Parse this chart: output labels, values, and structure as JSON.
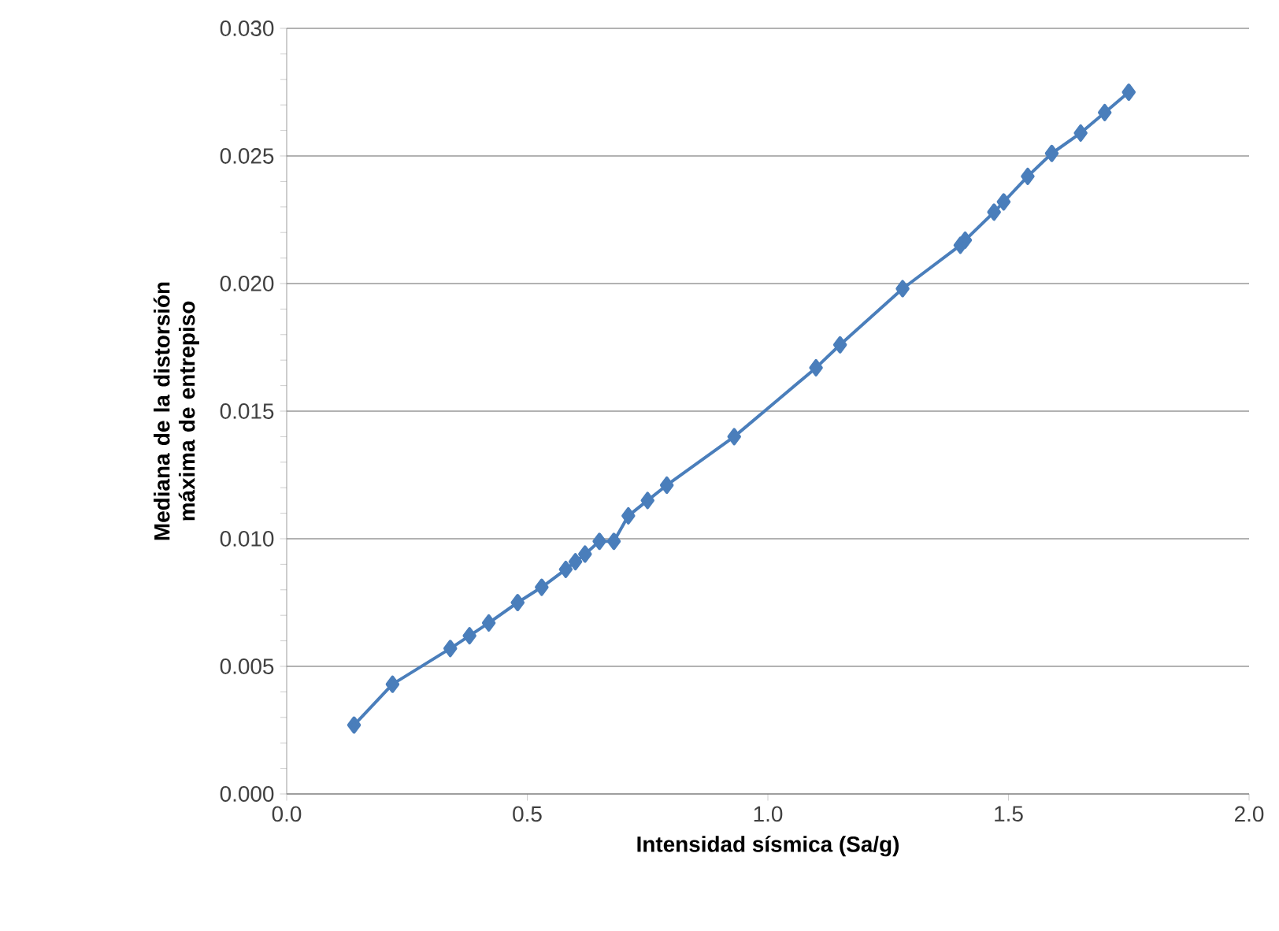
{
  "chart_data": {
    "type": "line",
    "xlabel": "Intensidad sísmica (Sa/g)",
    "ylabel": "Mediana de la distorsión máxima de entrepiso",
    "x": [
      0.14,
      0.22,
      0.34,
      0.38,
      0.42,
      0.48,
      0.53,
      0.58,
      0.6,
      0.62,
      0.65,
      0.68,
      0.71,
      0.75,
      0.79,
      0.93,
      1.1,
      1.15,
      1.28,
      1.4,
      1.41,
      1.47,
      1.49,
      1.54,
      1.59,
      1.65,
      1.7,
      1.75
    ],
    "series": [
      {
        "color": "#4a7ebb",
        "values": [
          0.0027,
          0.0043,
          0.0057,
          0.0062,
          0.0067,
          0.0075,
          0.0081,
          0.0088,
          0.0091,
          0.0094,
          0.0099,
          0.0099,
          0.0109,
          0.0115,
          0.0121,
          0.014,
          0.0167,
          0.0176,
          0.0198,
          0.0215,
          0.0217,
          0.0228,
          0.0232,
          0.0242,
          0.0251,
          0.0259,
          0.0267,
          0.0275
        ]
      }
    ],
    "xlim": [
      0.0,
      2.0
    ],
    "xticks": [
      {
        "value": 0,
        "label": "0.0"
      },
      {
        "value": 0.5,
        "label": "0.5"
      },
      {
        "value": 1,
        "label": "1.0"
      },
      {
        "value": 1.5,
        "label": "1.5"
      },
      {
        "value": 2,
        "label": "2.0"
      }
    ],
    "ylim": [
      0.0,
      0.03
    ],
    "yticks": [
      {
        "value": 0,
        "label": "0.000"
      },
      {
        "value": 0.005,
        "label": "0.005"
      },
      {
        "value": 0.01,
        "label": "0.010"
      },
      {
        "value": 0.015,
        "label": "0.015"
      },
      {
        "value": 0.02,
        "label": "0.020"
      },
      {
        "value": 0.025,
        "label": "0.025"
      },
      {
        "value": 0.03,
        "label": "0.030"
      }
    ],
    "grid": "y",
    "marker": "diamond",
    "line_style": "solid"
  }
}
